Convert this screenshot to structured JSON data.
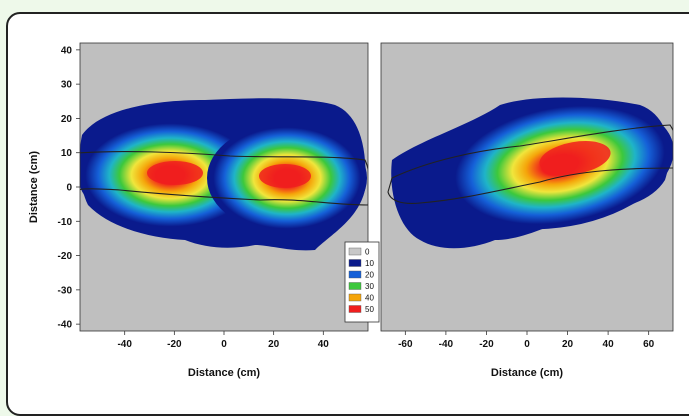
{
  "chart_data": [
    {
      "type": "heatmap",
      "title": "",
      "xlabel": "Distance (cm)",
      "ylabel": "Distance (cm)",
      "xlim": [
        -58,
        58
      ],
      "ylim": [
        -42,
        42
      ],
      "xticks": [
        -40,
        -20,
        0,
        20,
        40
      ],
      "yticks": [
        40,
        30,
        20,
        10,
        0,
        -10,
        -20,
        -30,
        -40
      ],
      "background_color": "#bfbfbf",
      "hotspots": [
        {
          "x": -18,
          "y": 4,
          "value": 50
        },
        {
          "x": 25,
          "y": 3,
          "value": 50
        }
      ],
      "outline_extent": {
        "x": [
          -57,
          57
        ],
        "y": [
          -2,
          9
        ]
      }
    },
    {
      "type": "heatmap",
      "title": "",
      "xlabel": "Distance (cm)",
      "ylabel": "",
      "xlim": [
        -72,
        72
      ],
      "ylim": [
        -42,
        42
      ],
      "xticks": [
        -60,
        -40,
        -20,
        0,
        20,
        40,
        60
      ],
      "yticks": [],
      "background_color": "#bfbfbf",
      "hotspots": [
        {
          "x": 25,
          "y": 9,
          "value": 50
        }
      ],
      "outline_extent": {
        "x": [
          -66,
          72
        ],
        "y": [
          -4,
          13
        ]
      }
    }
  ],
  "legend": {
    "entries": [
      {
        "label": "0",
        "color": "#c8c8c8"
      },
      {
        "label": "10",
        "color": "#0a1a8c"
      },
      {
        "label": "20",
        "color": "#1560d8"
      },
      {
        "label": "30",
        "color": "#3cc83c"
      },
      {
        "label": "40",
        "color": "#f5a50a"
      },
      {
        "label": "50",
        "color": "#f01e1e"
      }
    ]
  },
  "colors": {
    "page_background": "#eef9ea",
    "panel_background": "#bfbfbf",
    "scale": [
      "#0a1a8c",
      "#1560d8",
      "#1fb4c8",
      "#3cc83c",
      "#f0e63c",
      "#f5a50a",
      "#f01e1e"
    ]
  }
}
